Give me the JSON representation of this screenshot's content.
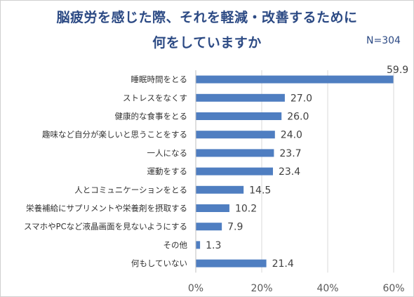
{
  "chart_data": {
    "type": "bar",
    "orientation": "horizontal",
    "title": [
      "脳疲労を感じた際、それを軽減・改善するために",
      "何をしていますか"
    ],
    "note": "N=304",
    "categories": [
      "睡眠時間をとる",
      "ストレスをなくす",
      "健康的な食事をとる",
      "趣味など自分が楽しいと思うことをする",
      "一人になる",
      "運動をする",
      "人とコミュニケーションをとる",
      "栄養補給にサプリメントや栄養剤を摂取する",
      "スマホやPCなど液晶画面を見ないようにする",
      "その他",
      "何もしていない"
    ],
    "values": [
      59.9,
      27.0,
      26.0,
      24.0,
      23.7,
      23.4,
      14.5,
      10.2,
      7.9,
      1.3,
      21.4
    ],
    "value_labels": [
      "59.9",
      "27.0",
      "26.0",
      "24.0",
      "23.7",
      "23.4",
      "14.5",
      "10.2",
      "7.9",
      "1.3",
      "21.4"
    ],
    "xlim": [
      0,
      60
    ],
    "xticks": [
      "0%",
      "20%",
      "40%",
      "60%"
    ],
    "xtick_values": [
      0,
      20,
      40,
      60
    ],
    "grid": true,
    "bar_color": "#4f7ec1",
    "title_color": "#2c4a84"
  }
}
